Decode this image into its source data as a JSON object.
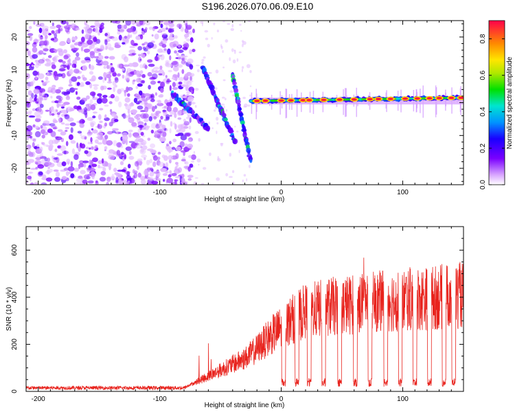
{
  "title": "S196.2026.070.06.09.E10",
  "chart_data": [
    {
      "type": "heatmap",
      "name": "spectrogram",
      "xlabel": "Height of straight line (km)",
      "ylabel": "Frequency (Hz)",
      "xlim": [
        -210,
        150
      ],
      "ylim": [
        -25,
        25
      ],
      "xticks": [
        -200,
        -100,
        0,
        100
      ],
      "yticks": [
        -20,
        -10,
        0,
        10,
        20
      ],
      "colorbar": {
        "label": "Normalized spectral amplitude",
        "range": [
          0.0,
          0.9
        ],
        "ticks": [
          0.0,
          0.2,
          0.4,
          0.6,
          0.8
        ]
      },
      "features": {
        "noise_region_x": [
          -210,
          -80
        ],
        "doppler_chirps": [
          {
            "x_start": -90,
            "f_start": 3,
            "x_end": -60,
            "f_end": -8
          },
          {
            "x_start": -65,
            "f_start": 11,
            "x_end": -38,
            "f_end": -12
          },
          {
            "x_start": -40,
            "f_start": 8,
            "x_end": -25,
            "f_end": -18
          }
        ],
        "carrier_line": {
          "x_start": -25,
          "x_end": 150,
          "f_start": 0.5,
          "f_end": 1.5
        },
        "carrier_peaks_x": [
          -20,
          -13,
          0,
          8,
          18,
          23,
          35,
          48,
          60,
          73,
          80,
          90,
          102,
          112,
          122,
          130,
          140,
          148
        ]
      }
    },
    {
      "type": "line",
      "name": "snr",
      "xlabel": "Height of straight line (km)",
      "ylabel": "SNR (10 * v/v)",
      "xlim": [
        -210,
        150
      ],
      "ylim": [
        0,
        700
      ],
      "xticks": [
        -200,
        -100,
        0,
        100
      ],
      "yticks": [
        0,
        200,
        400,
        600
      ],
      "color": "#e8231d",
      "envelope": [
        {
          "x": -210,
          "y": 15
        },
        {
          "x": -80,
          "y": 15
        },
        {
          "x": -70,
          "y": 40
        },
        {
          "x": -50,
          "y": 90
        },
        {
          "x": -30,
          "y": 140
        },
        {
          "x": -20,
          "y": 180
        },
        {
          "x": -10,
          "y": 230
        },
        {
          "x": 0,
          "y": 270
        },
        {
          "x": 10,
          "y": 310
        },
        {
          "x": 20,
          "y": 340
        },
        {
          "x": 40,
          "y": 360
        },
        {
          "x": 60,
          "y": 370
        },
        {
          "x": 80,
          "y": 380
        },
        {
          "x": 100,
          "y": 390
        },
        {
          "x": 120,
          "y": 395
        },
        {
          "x": 150,
          "y": 410
        }
      ],
      "dropouts_x": [
        2,
        13,
        23,
        35,
        48,
        61,
        73,
        86,
        98,
        110,
        122,
        134,
        142
      ]
    }
  ]
}
